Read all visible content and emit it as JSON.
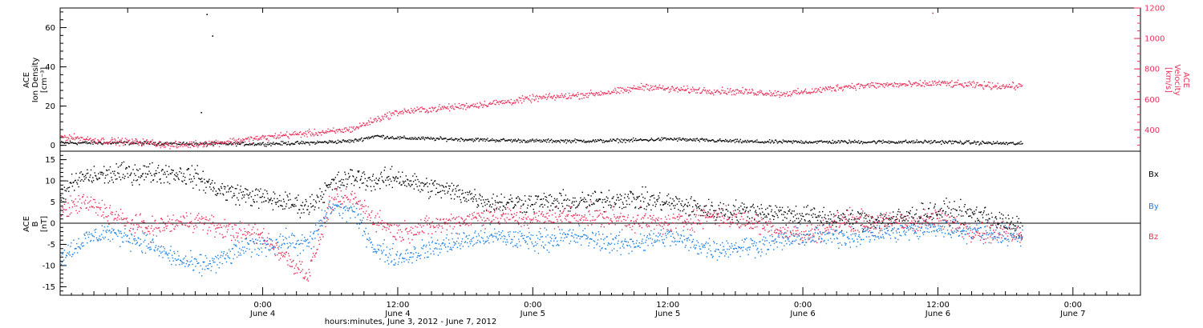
{
  "colors": {
    "black": "#000000",
    "velocity": "#e8305a",
    "bx": "#000000",
    "by": "#1a7fe0",
    "bz": "#e8305a"
  },
  "chart_data": [
    {
      "type": "scatter",
      "panel": "top",
      "xlabel": "hours:minutes, June  3, 2012 - June  7, 2012",
      "ylabel_left": [
        "ACE",
        "Ion Density",
        "[cm⁻³]"
      ],
      "ylabel_right": [
        "ACE",
        "Velocity",
        "[km/s]"
      ],
      "x_range_hours": [
        -18,
        78
      ],
      "x_unit": "hours from 00:00 June 4, 2012",
      "ylim_left": [
        -3,
        70
      ],
      "ylim_right": [
        260,
        1200
      ],
      "y_ticks_left": [
        0,
        20,
        40,
        60
      ],
      "y_ticks_right": [
        400,
        600,
        800,
        1000,
        1200
      ],
      "series": [
        {
          "axis": "left",
          "color": "black",
          "x": [
            -18,
            -12,
            -6,
            0,
            4,
            8,
            10,
            12,
            16,
            20,
            24,
            30,
            34,
            36,
            38,
            44,
            48,
            52,
            56,
            60,
            64,
            68
          ],
          "y": [
            1.5,
            1.5,
            1.0,
            1.0,
            1.5,
            2.5,
            5.0,
            4.0,
            3.5,
            3.0,
            2.5,
            2.5,
            3.0,
            3.5,
            3.0,
            2.0,
            2.0,
            2.0,
            2.0,
            2.0,
            1.5,
            1.0
          ]
        },
        {
          "axis": "right",
          "color": "velocity",
          "x": [
            -18,
            -14,
            -10,
            -8,
            -4,
            0,
            2,
            6,
            8,
            10,
            12,
            18,
            22,
            24,
            28,
            32,
            34,
            36,
            40,
            44,
            46,
            48,
            52,
            56,
            58,
            60,
            62,
            66,
            68,
            70
          ],
          "y": [
            360,
            330,
            320,
            300,
            320,
            350,
            370,
            390,
            410,
            470,
            520,
            560,
            590,
            610,
            630,
            660,
            690,
            670,
            660,
            650,
            640,
            650,
            690,
            700,
            700,
            710,
            700,
            690,
            690,
            690
          ]
        }
      ],
      "isolated_points": [
        {
          "axis": "left",
          "x": -4.5,
          "y": 56
        },
        {
          "axis": "left",
          "x": -5.5,
          "y": 17
        },
        {
          "axis": "left",
          "x": -5.0,
          "y": 67
        },
        {
          "axis": "right",
          "x": 59.5,
          "y": 1170
        }
      ]
    },
    {
      "type": "scatter",
      "panel": "bottom",
      "ylabel": [
        "ACE",
        "B",
        "[nT]"
      ],
      "x_range_hours": [
        -18,
        78
      ],
      "x_unit": "hours from 00:00 June 4, 2012",
      "ylim": [
        -17,
        17
      ],
      "y_ticks": [
        -15,
        -10,
        -5,
        0,
        5,
        10,
        15
      ],
      "x_ticks": [
        {
          "hours": 0,
          "label": "0:00",
          "sublabel": "June 4"
        },
        {
          "hours": 12,
          "label": "12:00",
          "sublabel": "June 4"
        },
        {
          "hours": 24,
          "label": "0:00",
          "sublabel": "June 5"
        },
        {
          "hours": 36,
          "label": "12:00",
          "sublabel": "June 5"
        },
        {
          "hours": 48,
          "label": "0:00",
          "sublabel": "June 6"
        },
        {
          "hours": 60,
          "label": "12:00",
          "sublabel": "June 6"
        },
        {
          "hours": 72,
          "label": "0:00",
          "sublabel": "June 7"
        }
      ],
      "series": [
        {
          "name": "Bx",
          "color": "bx",
          "x": [
            -18,
            -16,
            -12,
            -8,
            -6,
            -4,
            -2,
            0,
            2,
            4,
            6,
            8,
            10,
            12,
            14,
            18,
            20,
            24,
            28,
            32,
            36,
            40,
            44,
            48,
            52,
            56,
            60,
            64,
            67
          ],
          "y": [
            7,
            11,
            12,
            12,
            11,
            8,
            7,
            6,
            5,
            4,
            9,
            11,
            10,
            11,
            9,
            7,
            5,
            5,
            5,
            6,
            5,
            3,
            3,
            2,
            1,
            1,
            3,
            2,
            -1
          ]
        },
        {
          "name": "By",
          "color": "by",
          "x": [
            -18,
            -16,
            -14,
            -12,
            -10,
            -8,
            -6,
            -4,
            -2,
            0,
            2,
            4,
            6,
            8,
            10,
            12,
            16,
            20,
            24,
            28,
            32,
            36,
            40,
            44,
            48,
            52,
            56,
            60,
            64,
            67
          ],
          "y": [
            -8,
            -4,
            -2,
            -3,
            -5,
            -8,
            -10,
            -9,
            -6,
            -5,
            -4,
            -5,
            4,
            3,
            -6,
            -8,
            -5,
            -3,
            -4,
            -3,
            -5,
            -3,
            -6,
            -5,
            -3,
            -3,
            -2,
            -1,
            -2,
            -3
          ]
        },
        {
          "name": "Bz",
          "color": "bz",
          "x": [
            -18,
            -16,
            -14,
            -12,
            -10,
            -8,
            -6,
            -4,
            -2,
            0,
            2,
            4,
            6,
            8,
            10,
            12,
            16,
            20,
            24,
            28,
            32,
            36,
            40,
            44,
            48,
            52,
            56,
            60,
            64,
            67
          ],
          "y": [
            3,
            5,
            3,
            0,
            -1,
            0,
            1,
            -1,
            -2,
            -3,
            -8,
            -12,
            5,
            6,
            1,
            -2,
            0,
            2,
            1,
            2,
            1,
            0,
            2,
            0,
            -3,
            1,
            0,
            1,
            -2,
            -2
          ]
        }
      ],
      "legend": [
        "Bx",
        "By",
        "Bz"
      ],
      "zero_line": true
    }
  ]
}
